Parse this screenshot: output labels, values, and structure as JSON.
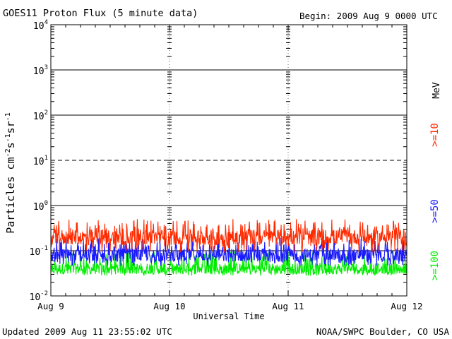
{
  "header": {
    "title": "GOES11 Proton Flux (5 minute data)",
    "begin": "Begin: 2009 Aug 9 0000 UTC"
  },
  "footer": {
    "updated": "Updated 2009 Aug 11 23:55:02 UTC",
    "source": "NOAA/SWPC Boulder, CO USA"
  },
  "chart_data": {
    "type": "line",
    "title": "GOES11 Proton Flux (5 minute data)",
    "xlabel": "Universal Time",
    "ylabel": "Particles cm-2 s-1 sr-1",
    "yscale": "log",
    "ylim": [
      0.01,
      10000
    ],
    "y_ticks": [
      {
        "base": "10",
        "exp": "-2"
      },
      {
        "base": "10",
        "exp": "-1"
      },
      {
        "base": "10",
        "exp": "0"
      },
      {
        "base": "10",
        "exp": "1"
      },
      {
        "base": "10",
        "exp": "2"
      },
      {
        "base": "10",
        "exp": "3"
      },
      {
        "base": "10",
        "exp": "4"
      }
    ],
    "x_ticks": [
      "Aug 9",
      "Aug 10",
      "Aug 11",
      "Aug 12"
    ],
    "x_range_days": [
      0,
      3
    ],
    "grid": true,
    "legend": {
      "placement": "right",
      "unit": "MeV",
      "entries": [
        {
          "label": ">=10",
          "color": "#ff2a00"
        },
        {
          "label": ">=50",
          "color": "#1a1aff"
        },
        {
          "label": ">=100",
          "color": "#00ee00"
        }
      ]
    },
    "series": [
      {
        "name": ">=10",
        "color": "#ff2a00",
        "level": 0.2,
        "low": 0.09,
        "high": 0.5
      },
      {
        "name": ">=50",
        "color": "#1a1aff",
        "level": 0.08,
        "low": 0.045,
        "high": 0.2
      },
      {
        "name": ">=100",
        "color": "#00ee00",
        "level": 0.04,
        "low": 0.028,
        "high": 0.1
      }
    ]
  }
}
